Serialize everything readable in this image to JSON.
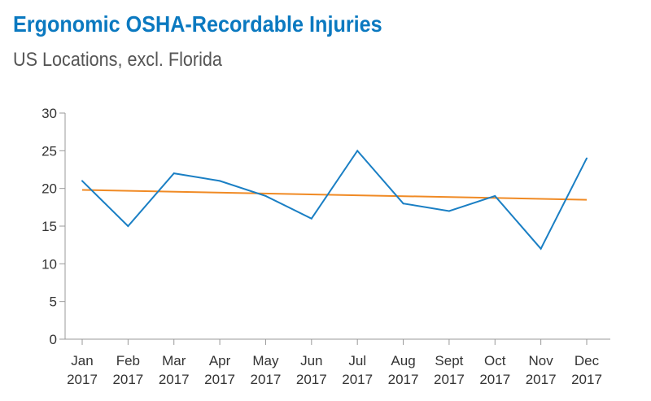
{
  "title": "Ergonomic OSHA-Recordable Injuries",
  "subtitle": "US Locations, excl. Florida",
  "colors": {
    "title": "#0b79c0",
    "series": "#1a7fc4",
    "trend": "#f08a24",
    "axis": "#999999",
    "text": "#333333"
  },
  "chart_data": {
    "type": "line",
    "categories": [
      [
        "Jan",
        "2017"
      ],
      [
        "Feb",
        "2017"
      ],
      [
        "Mar",
        "2017"
      ],
      [
        "Apr",
        "2017"
      ],
      [
        "May",
        "2017"
      ],
      [
        "Jun",
        "2017"
      ],
      [
        "Jul",
        "2017"
      ],
      [
        "Aug",
        "2017"
      ],
      [
        "Sept",
        "2017"
      ],
      [
        "Oct",
        "2017"
      ],
      [
        "Nov",
        "2017"
      ],
      [
        "Dec",
        "2017"
      ]
    ],
    "series": [
      {
        "values": [
          21,
          15,
          22,
          21,
          19,
          16,
          25,
          18,
          17,
          19,
          12,
          24
        ]
      }
    ],
    "trendline": {
      "start": 19.8,
      "end": 18.5
    },
    "yticks": [
      0,
      5,
      10,
      15,
      20,
      25,
      30
    ],
    "ylim": [
      0,
      30
    ],
    "grid": false,
    "legend": "none"
  }
}
